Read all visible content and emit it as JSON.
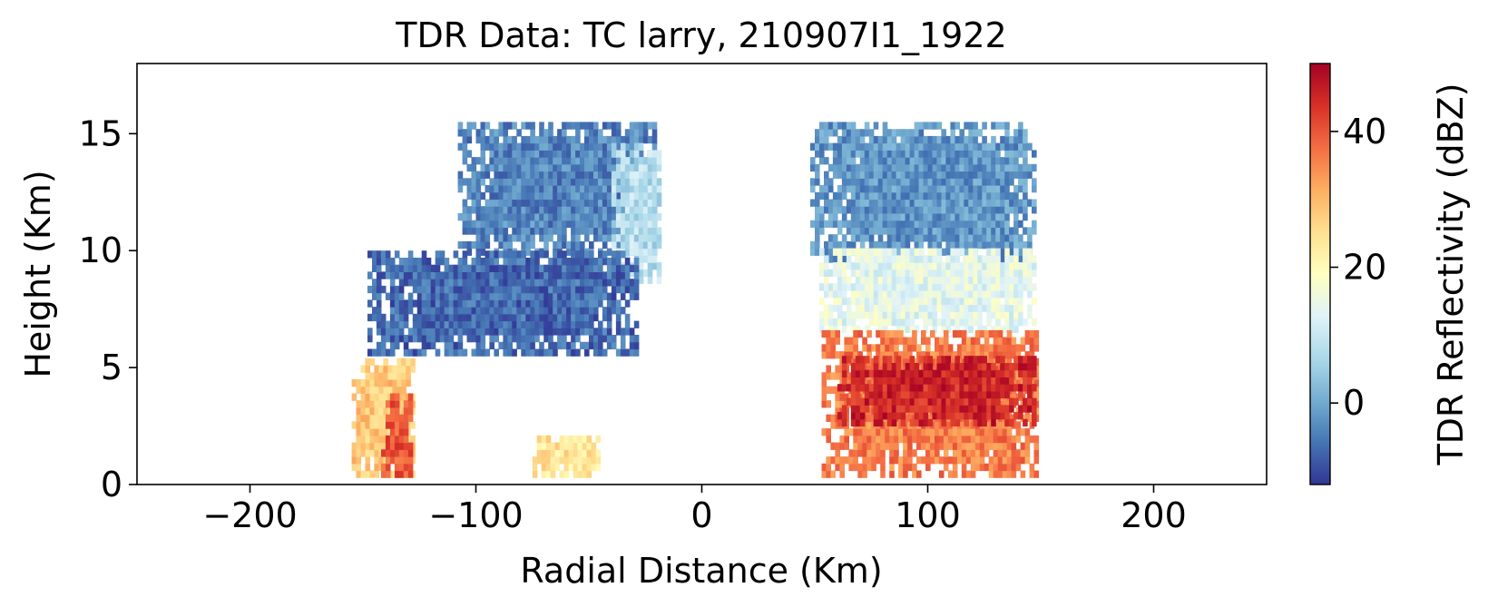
{
  "chart_data": {
    "type": "heatmap",
    "title": "TDR Data: TC larry, 210907I1_1922",
    "xlabel": "Radial Distance (Km)",
    "ylabel": "Height (Km)",
    "xlim": [
      -250,
      250
    ],
    "ylim": [
      0,
      18
    ],
    "xticks": [
      -200,
      -100,
      0,
      100,
      200
    ],
    "xtick_labels": [
      "−200",
      "−100",
      "0",
      "100",
      "200"
    ],
    "yticks": [
      0,
      5,
      10,
      15
    ],
    "ytick_labels": [
      "0",
      "5",
      "10",
      "15"
    ],
    "grid": false,
    "colorbar": {
      "label": "TDR Reflectivity (dBZ)",
      "range": [
        -12,
        50
      ],
      "ticks": [
        0,
        20,
        40
      ],
      "tick_labels": [
        "0",
        "20",
        "40"
      ],
      "colormap": "RdYlBu_r",
      "colors": [
        "#313695",
        "#4575b4",
        "#74add1",
        "#abd9e9",
        "#e0f3f8",
        "#ffffbf",
        "#fee090",
        "#fdae61",
        "#f46d43",
        "#d73027",
        "#a50026"
      ]
    },
    "regions": [
      {
        "name": "left-upper-anvil",
        "x": [
          -108,
          -20
        ],
        "y": [
          9.8,
          15.5
        ],
        "dbz": -4
      },
      {
        "name": "left-upper-bright-core",
        "x": [
          -40,
          -18
        ],
        "y": [
          8.6,
          14.5
        ],
        "dbz": 8
      },
      {
        "name": "left-middle-band",
        "x": [
          -148,
          -28
        ],
        "y": [
          5.5,
          10.0
        ],
        "dbz": -7
      },
      {
        "name": "left-lower-echo",
        "x": [
          -155,
          -128
        ],
        "y": [
          0.3,
          5.2
        ],
        "dbz": 28
      },
      {
        "name": "left-lower-core",
        "x": [
          -142,
          -128
        ],
        "y": [
          0.3,
          3.6
        ],
        "dbz": 40
      },
      {
        "name": "left-near-surface-patch",
        "x": [
          -75,
          -45
        ],
        "y": [
          0.3,
          2.1
        ],
        "dbz": 24
      },
      {
        "name": "right-upper-anvil",
        "x": [
          48,
          148
        ],
        "y": [
          9.5,
          15.5
        ],
        "dbz": -2
      },
      {
        "name": "right-transition",
        "x": [
          52,
          148
        ],
        "y": [
          6.5,
          10.0
        ],
        "dbz": 14
      },
      {
        "name": "right-rain-region",
        "x": [
          53,
          148
        ],
        "y": [
          0.3,
          6.5
        ],
        "dbz": 36
      },
      {
        "name": "right-bright-band",
        "x": [
          60,
          148
        ],
        "y": [
          2.5,
          5.3
        ],
        "dbz": 45
      }
    ]
  }
}
